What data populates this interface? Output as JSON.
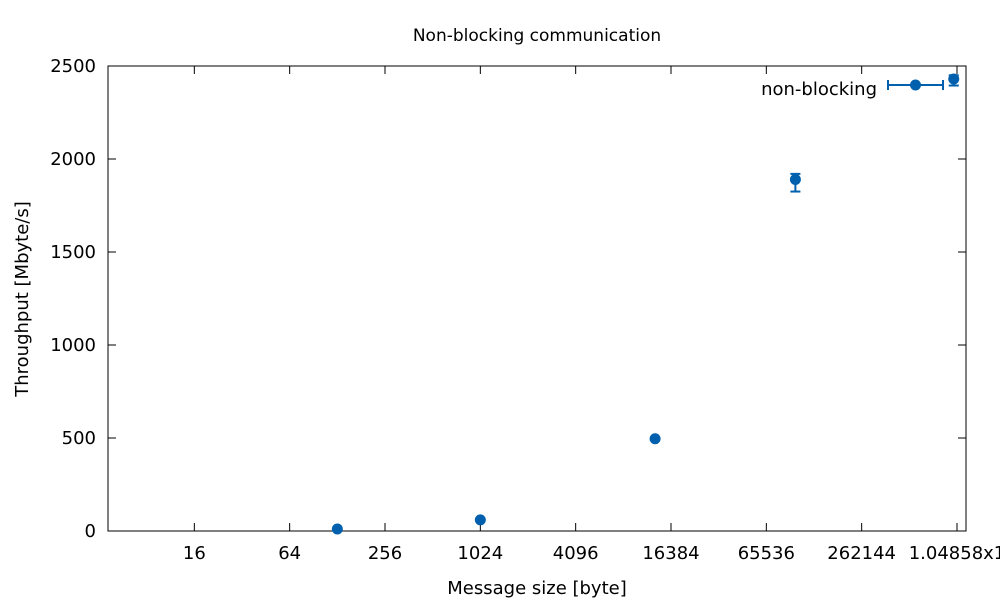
{
  "chart_data": {
    "type": "scatter",
    "title": "Non-blocking communication",
    "xlabel": "Message size [byte]",
    "ylabel": "Throughput [Mbyte/s]",
    "x_scale": "log2",
    "xlim": [
      4,
      1048576
    ],
    "ylim": [
      0,
      2500
    ],
    "x_tick_values": [
      16,
      64,
      256,
      1024,
      4096,
      16384,
      65536,
      262144,
      1048576
    ],
    "x_tick_labels": [
      "16",
      "64",
      "256",
      "1024",
      "4096",
      "16384",
      "65536",
      "262144",
      "1.04858x1"
    ],
    "y_ticks": [
      0,
      500,
      1000,
      1500,
      2000,
      2500
    ],
    "y_tick_labels": [
      "0",
      "500",
      "1000",
      "1500",
      "2000",
      "2500"
    ],
    "grid": false,
    "legend_position": "top-right",
    "colors": {
      "series": "#0060ad",
      "axis": "#000000"
    },
    "series": [
      {
        "name": "non-blocking",
        "points": [
          {
            "x": 128,
            "y": 11,
            "err_low": 9,
            "err_high": 13
          },
          {
            "x": 1024,
            "y": 60,
            "err_low": 58,
            "err_high": 62
          },
          {
            "x": 13000,
            "y": 496,
            "err_low": 493,
            "err_high": 499
          },
          {
            "x": 100000,
            "y": 1890,
            "err_low": 1825,
            "err_high": 1920
          },
          {
            "x": 1000000,
            "y": 2430,
            "err_low": 2395,
            "err_high": 2450
          }
        ]
      }
    ]
  }
}
